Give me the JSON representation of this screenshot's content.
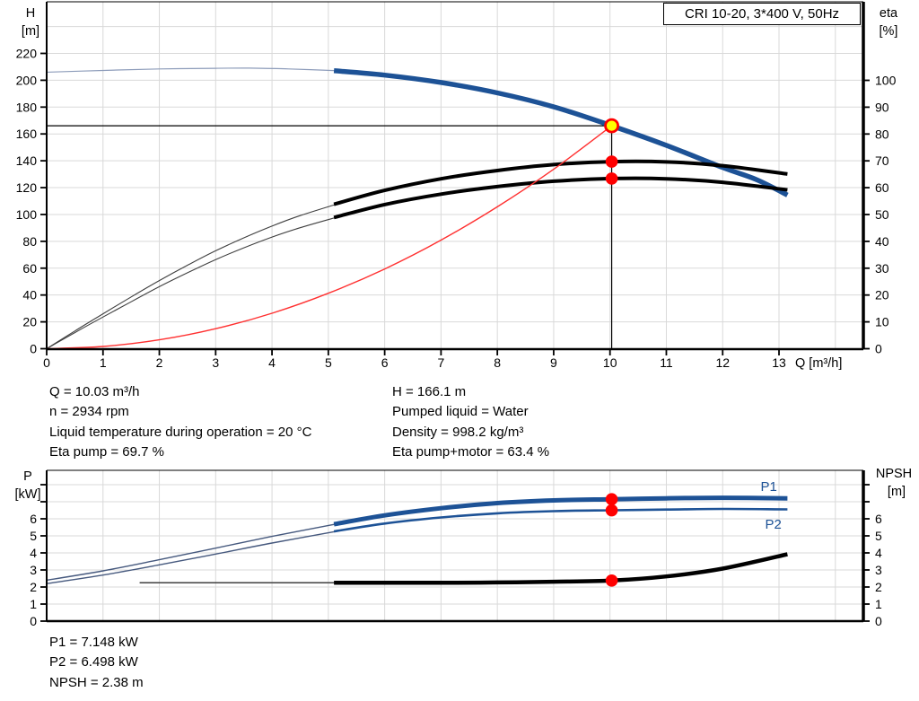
{
  "title_box": {
    "label": "CRI 10-20, 3*400 V, 50Hz"
  },
  "colors": {
    "curve_blue": "#1d5296",
    "thin_blue": "#8d9cba",
    "thin_power_blue": "#46597e",
    "curve_black": "#000000",
    "thin_gray": "#3f3f3f",
    "system_red": "#ff3030",
    "marker_red": "#ff0000",
    "marker_yellow": "#ffff00",
    "grid": "#d9d9d9",
    "axis": "#000000"
  },
  "chart_data": [
    {
      "id": "head-efficiency-chart",
      "type": "line",
      "x_axis": {
        "label": "Q [m³/h]",
        "ticks": [
          0,
          1,
          2,
          3,
          4,
          5,
          6,
          7,
          8,
          9,
          10,
          11,
          12,
          13
        ],
        "grid_from": 1,
        "grid_to": 14,
        "max": 14.5
      },
      "y_left": {
        "title_lines": [
          "H",
          "[m]"
        ],
        "ticks": [
          0,
          20,
          40,
          60,
          80,
          100,
          120,
          140,
          160,
          180,
          200,
          220
        ],
        "grid_from": 20,
        "grid_to": 240,
        "grid_step": 20,
        "max": 258
      },
      "y_right": {
        "title_lines": [
          "eta",
          "[%]"
        ],
        "ticks": [
          0,
          10,
          20,
          30,
          40,
          50,
          60,
          70,
          80,
          90,
          100
        ],
        "max": 129
      },
      "series": [
        {
          "name": "H-curve-extension",
          "axis": "H",
          "style": "h_thin",
          "points": [
            [
              0,
              206
            ],
            [
              1,
              207.3
            ],
            [
              2,
              208.4
            ],
            [
              3,
              208.9
            ],
            [
              3.6,
              209
            ],
            [
              4.3,
              208.4
            ],
            [
              5.2,
              207
            ]
          ]
        },
        {
          "name": "H-curve",
          "axis": "H",
          "style": "h_thick",
          "points": [
            [
              5.1,
              207.1
            ],
            [
              6,
              203.8
            ],
            [
              7,
              198.3
            ],
            [
              8,
              190.6
            ],
            [
              9,
              180.2
            ],
            [
              10.03,
              166.1
            ],
            [
              11,
              151.5
            ],
            [
              12,
              135
            ],
            [
              12.6,
              126
            ],
            [
              13.15,
              114.5
            ]
          ]
        },
        {
          "name": "eta-pump-extension",
          "axis": "eta",
          "style": "eta_thin",
          "points": [
            [
              0,
              0
            ],
            [
              0.5,
              6.6
            ],
            [
              1,
              13
            ],
            [
              1.5,
              19.3
            ],
            [
              2,
              25.4
            ],
            [
              2.5,
              31.1
            ],
            [
              3,
              36.5
            ],
            [
              3.5,
              41.3
            ],
            [
              4,
              45.7
            ],
            [
              4.5,
              49.6
            ],
            [
              5.2,
              54.2
            ]
          ]
        },
        {
          "name": "eta-pump",
          "axis": "eta",
          "style": "eta_thick",
          "points": [
            [
              5.1,
              53.8
            ],
            [
              6,
              59
            ],
            [
              7,
              63.3
            ],
            [
              8,
              66.4
            ],
            [
              9,
              68.6
            ],
            [
              10.03,
              69.7
            ],
            [
              11,
              69.6
            ],
            [
              12,
              68.2
            ],
            [
              13.15,
              65.1
            ]
          ]
        },
        {
          "name": "eta-pump-motor-extension",
          "axis": "eta",
          "style": "eta_thin",
          "points": [
            [
              0,
              0
            ],
            [
              0.5,
              6
            ],
            [
              1,
              11.8
            ],
            [
              1.5,
              17.5
            ],
            [
              2,
              23.1
            ],
            [
              2.5,
              28.3
            ],
            [
              3,
              33.2
            ],
            [
              3.5,
              37.6
            ],
            [
              4,
              41.6
            ],
            [
              4.5,
              45.1
            ],
            [
              5.2,
              49.3
            ]
          ]
        },
        {
          "name": "eta-pump-motor",
          "axis": "eta",
          "style": "eta_thick",
          "points": [
            [
              5.1,
              48.9
            ],
            [
              6,
              53.7
            ],
            [
              7,
              57.6
            ],
            [
              8,
              60.4
            ],
            [
              9,
              62.4
            ],
            [
              10.03,
              63.4
            ],
            [
              11,
              63.3
            ],
            [
              12,
              62
            ],
            [
              13.15,
              59.2
            ]
          ]
        },
        {
          "name": "system-curve",
          "axis": "H",
          "style": "system",
          "points": [
            [
              0,
              0
            ],
            [
              1,
              1.7
            ],
            [
              2,
              6.6
            ],
            [
              3,
              14.9
            ],
            [
              4,
              26.4
            ],
            [
              5,
              41.3
            ],
            [
              6,
              59.4
            ],
            [
              7,
              80.9
            ],
            [
              8,
              105.7
            ],
            [
              9,
              133.7
            ],
            [
              10.03,
              166.1
            ]
          ]
        }
      ],
      "duty": {
        "q": 10.03,
        "h": 166.1,
        "eta_pump": 69.7,
        "eta_pump_motor": 63.4
      }
    },
    {
      "id": "power-npsh-chart",
      "type": "line",
      "x_axis": {
        "grid_from": 1,
        "grid_to": 14,
        "max": 14.5
      },
      "y_left": {
        "title_lines": [
          "P",
          "[kW]"
        ],
        "tick_marks": [
          0,
          1,
          2,
          3,
          4,
          5,
          6,
          7,
          8
        ],
        "labels": [
          0,
          1,
          2,
          3,
          4,
          5,
          6
        ],
        "grid_from": 1,
        "grid_to": 8,
        "max": 8.84
      },
      "y_right": {
        "title_lines": [
          "NPSH",
          "[m]"
        ],
        "tick_marks": [
          0,
          1,
          2,
          3,
          4,
          5,
          6,
          7,
          8
        ],
        "labels": [
          0,
          1,
          2,
          3,
          4,
          5,
          6
        ]
      },
      "series": [
        {
          "name": "P1-extension",
          "style": "p_thin",
          "points": [
            [
              0,
              2.4
            ],
            [
              1,
              2.95
            ],
            [
              2,
              3.6
            ],
            [
              3,
              4.28
            ],
            [
              4,
              4.97
            ],
            [
              5.2,
              5.73
            ]
          ]
        },
        {
          "name": "P1-curve",
          "style": "p1_thick",
          "points": [
            [
              5.1,
              5.68
            ],
            [
              6,
              6.2
            ],
            [
              7,
              6.62
            ],
            [
              8,
              6.92
            ],
            [
              9,
              7.08
            ],
            [
              10.03,
              7.148
            ],
            [
              11,
              7.2
            ],
            [
              12,
              7.23
            ],
            [
              13.15,
              7.2
            ]
          ]
        },
        {
          "name": "P2-extension",
          "style": "p_thin",
          "points": [
            [
              0,
              2.2
            ],
            [
              1,
              2.7
            ],
            [
              2,
              3.3
            ],
            [
              3,
              3.93
            ],
            [
              4,
              4.58
            ],
            [
              5.2,
              5.3
            ]
          ]
        },
        {
          "name": "P2-curve",
          "style": "p2_thick",
          "points": [
            [
              5.1,
              5.26
            ],
            [
              6,
              5.72
            ],
            [
              7,
              6.08
            ],
            [
              8,
              6.32
            ],
            [
              9,
              6.45
            ],
            [
              10.03,
              6.498
            ],
            [
              11,
              6.54
            ],
            [
              12,
              6.58
            ],
            [
              13.15,
              6.55
            ]
          ]
        },
        {
          "name": "NPSH-extension",
          "style": "npsh_thin",
          "points": [
            [
              1.65,
              2.25
            ],
            [
              5.2,
              2.25
            ]
          ]
        },
        {
          "name": "NPSH-curve",
          "style": "npsh_thick",
          "points": [
            [
              5.1,
              2.25
            ],
            [
              7,
              2.25
            ],
            [
              8,
              2.27
            ],
            [
              9,
              2.31
            ],
            [
              10.03,
              2.38
            ],
            [
              11,
              2.62
            ],
            [
              12,
              3.08
            ],
            [
              13.15,
              3.92
            ]
          ]
        }
      ],
      "curve_labels": [
        {
          "text": "P1",
          "q": 12.82,
          "v": 7.62
        },
        {
          "text": "P2",
          "q": 12.9,
          "v": 5.42
        }
      ],
      "duty": {
        "q": 10.03,
        "p1": 7.148,
        "p2": 6.498,
        "npsh": 2.38
      }
    }
  ],
  "info_blocks": {
    "top_left": [
      "Q = 10.03 m³/h",
      "n = 2934 rpm",
      "Liquid temperature during operation = 20 °C",
      "Eta pump = 69.7 %"
    ],
    "top_right": [
      "H = 166.1 m",
      "Pumped liquid = Water",
      "Density = 998.2 kg/m³",
      "Eta pump+motor = 63.4 %"
    ],
    "bottom": [
      "P1 = 7.148 kW",
      "P2 = 6.498 kW",
      "NPSH = 2.38 m"
    ]
  }
}
